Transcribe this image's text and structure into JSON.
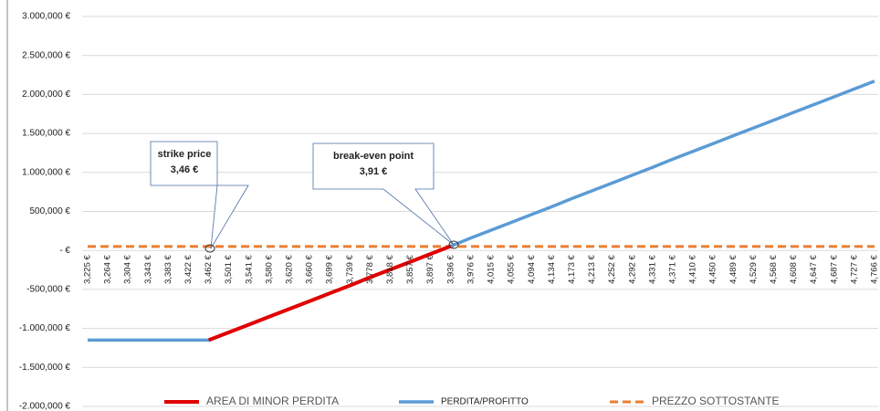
{
  "chart_data": {
    "type": "line",
    "categories": [
      "3,225 €",
      "3,264 €",
      "3,304 €",
      "3,343 €",
      "3,383 €",
      "3,422 €",
      "3,462 €",
      "3,501 €",
      "3,541 €",
      "3,580 €",
      "3,620 €",
      "3,660 €",
      "3,699 €",
      "3,739 €",
      "3,778 €",
      "3,818 €",
      "3,857 €",
      "3,897 €",
      "3,936 €",
      "3,976 €",
      "4,015 €",
      "4,055 €",
      "4,094 €",
      "4,134 €",
      "4,173 €",
      "4,213 €",
      "4,252 €",
      "4,292 €",
      "4,331 €",
      "4,371 €",
      "4,410 €",
      "4,450 €",
      "4,489 €",
      "4,529 €",
      "4,568 €",
      "4,608 €",
      "4,647 €",
      "4,687 €",
      "4,727 €",
      "4,766 €"
    ],
    "series": [
      {
        "name": "AREA DI MINOR PERDITA",
        "color": "#e00000",
        "line_style": "solid",
        "line_width": 4,
        "values": [
          null,
          null,
          null,
          null,
          null,
          null,
          -1150000,
          -1050000,
          -950000,
          -850000,
          -750000,
          -650000,
          -550000,
          -450000,
          -345000,
          -245000,
          -145000,
          -45000,
          55000,
          null,
          null,
          null,
          null,
          null,
          null,
          null,
          null,
          null,
          null,
          null,
          null,
          null,
          null,
          null,
          null,
          null,
          null,
          null,
          null,
          null
        ]
      },
      {
        "name": "PERDITA/PROFITTO",
        "color": "#5b9bd5",
        "line_style": "solid",
        "line_width": 3.5,
        "values": [
          -1150000,
          -1150000,
          -1150000,
          -1150000,
          -1150000,
          -1150000,
          -1150000,
          -1050000,
          -950000,
          -850000,
          -750000,
          -650000,
          -550000,
          -450000,
          -345000,
          -245000,
          -145000,
          -45000,
          55000,
          160000,
          260000,
          360000,
          460000,
          560000,
          665000,
          765000,
          865000,
          965000,
          1065000,
          1170000,
          1270000,
          1370000,
          1470000,
          1570000,
          1670000,
          1770000,
          1870000,
          1970000,
          2070000,
          2170000
        ]
      },
      {
        "name": "PREZZO SOTTOSTANTE",
        "color": "#ed7d31",
        "line_style": "dashed",
        "line_width": 3,
        "values": [
          50000,
          50000,
          50000,
          50000,
          50000,
          50000,
          50000,
          50000,
          50000,
          50000,
          50000,
          50000,
          50000,
          50000,
          50000,
          50000,
          50000,
          50000,
          50000,
          50000,
          50000,
          50000,
          50000,
          50000,
          50000,
          50000,
          50000,
          50000,
          50000,
          50000,
          50000,
          50000,
          50000,
          50000,
          50000,
          50000,
          50000,
          50000,
          50000,
          50000
        ]
      }
    ],
    "ylim": [
      -2000000,
      3000000
    ],
    "yticks": [
      {
        "value": -2000000,
        "label": "-2.000,000 €"
      },
      {
        "value": -1500000,
        "label": "-1.500,000 €"
      },
      {
        "value": -1000000,
        "label": "-1.000,000 €"
      },
      {
        "value": -500000,
        "label": "-500,000 €"
      },
      {
        "value": 0,
        "label": "-  €"
      },
      {
        "value": 500000,
        "label": "500,000 €"
      },
      {
        "value": 1000000,
        "label": "1.000,000 €"
      },
      {
        "value": 1500000,
        "label": "1.500,000 €"
      },
      {
        "value": 2000000,
        "label": "2.000,000 €"
      },
      {
        "value": 2500000,
        "label": "2.500,000 €"
      },
      {
        "value": 3000000,
        "label": "3.000,000 €"
      }
    ],
    "grid": true,
    "legend": "bottom",
    "annotations": [
      {
        "title": "strike price",
        "value": "3,46 €"
      },
      {
        "title": "break-even point",
        "value": "3,91 €"
      }
    ]
  }
}
